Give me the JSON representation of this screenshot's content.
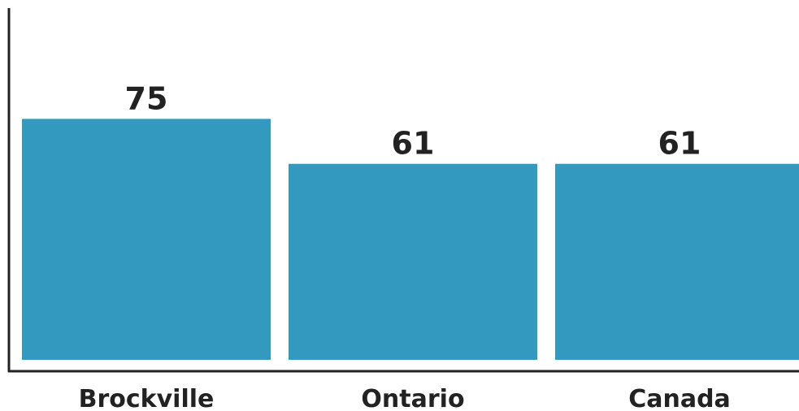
{
  "colors": {
    "bar": "#3399bf",
    "axis": "#222222",
    "text": "#222222"
  },
  "chart_data": {
    "type": "bar",
    "categories": [
      "Brockville",
      "Ontario",
      "Canada"
    ],
    "values": [
      75,
      61,
      61
    ],
    "value_labels": [
      "75",
      "61",
      "61"
    ],
    "title": "",
    "xlabel": "",
    "ylabel": "",
    "ylim": [
      0,
      112
    ],
    "grid": false,
    "legend": "none"
  }
}
